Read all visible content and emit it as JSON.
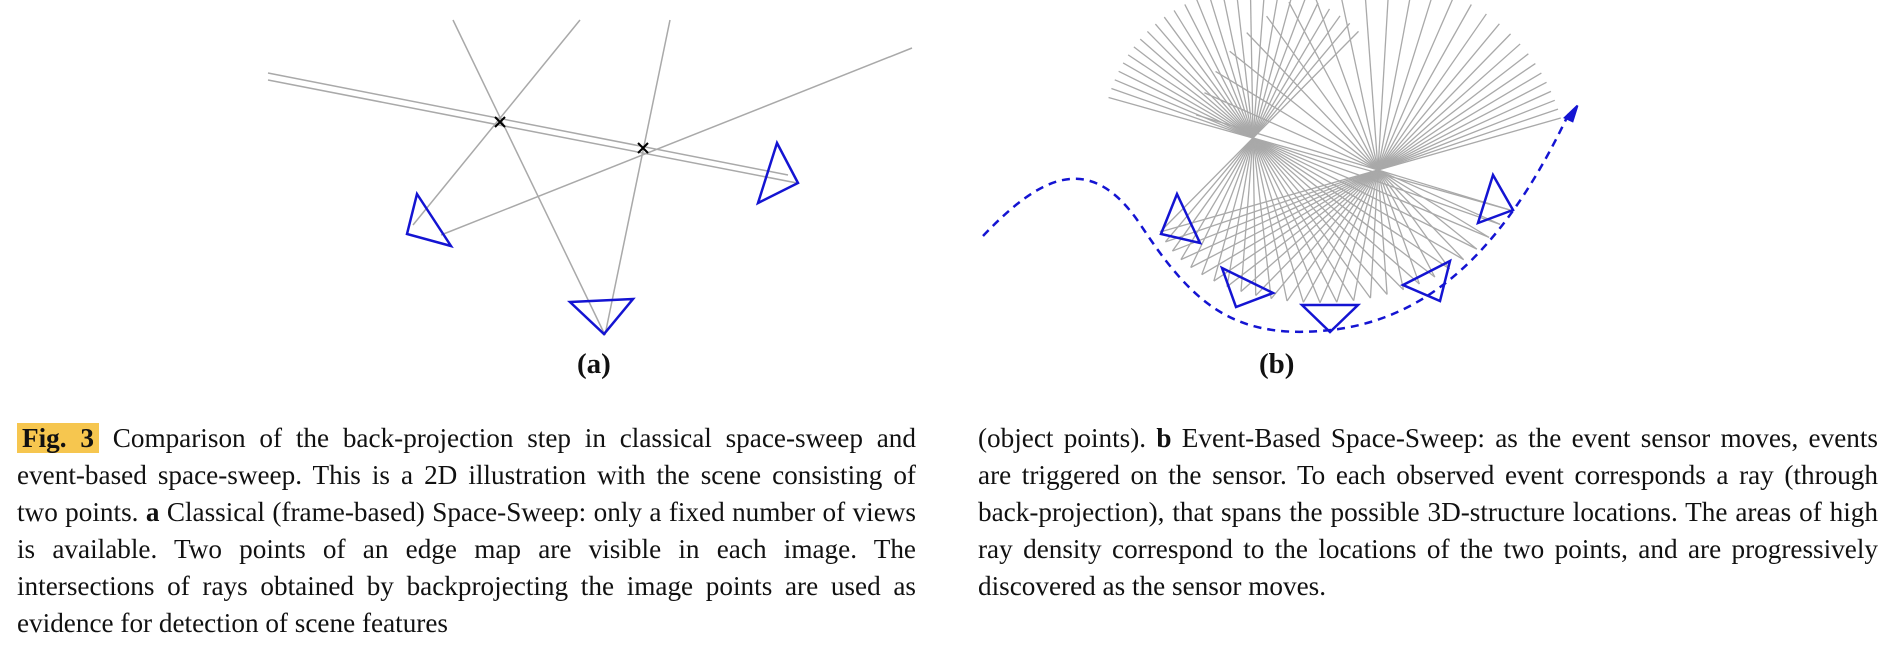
{
  "panels": {
    "a_label": "(a)",
    "b_label": "(b)"
  },
  "caption": {
    "fig_tag": "Fig. 3",
    "text_1": " Comparison of the back-projection step in classical space-sweep and event-based space-sweep. This is a 2D illustration with the scene consisting of two points. ",
    "a_mark": "a",
    "text_2": " Classical (frame-based) Space-Sweep: only a fixed number of views is available. Two points of an edge map are visible in each image. The intersections of rays obtained by backprojecting the image points are used as evidence for detection of scene features ",
    "text_3": "(object points). ",
    "b_mark": "b",
    "text_4": " Event-Based Space-Sweep: as the event sensor moves, events are triggered on the sensor. To each observed event corresponds a ray (through back-projection), that spans the possible 3D-structure locations. The areas of high ray density correspond to the locations of the two points, and are progressively discovered as the sensor moves."
  },
  "colors": {
    "ray": "#a9a9a9",
    "camera": "#1414d2",
    "trajectory": "#1414d2",
    "highlight": "#f6c64f",
    "point_marker": "#000000"
  },
  "icons": {
    "scene_point": "cross-marker",
    "camera": "triangle-camera",
    "trajectory_end": "arrowhead"
  }
}
